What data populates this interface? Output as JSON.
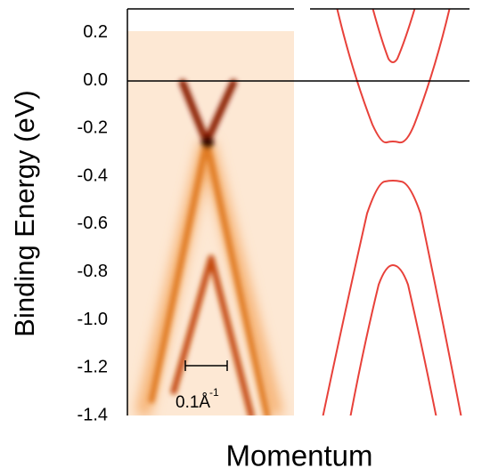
{
  "chart_data": {
    "type": "arpes",
    "ylabel": "Binding Energy (eV)",
    "xlabel": "Momentum",
    "ylim": [
      -1.4,
      0.3
    ],
    "yticks": [
      0.2,
      {
        "value": 0,
        "label": "0.0"
      },
      -0.2,
      -0.4,
      -0.6,
      -0.8,
      {
        "value": -1,
        "label": "-1.0"
      },
      -1.2,
      -1.4
    ],
    "scale_bar": {
      "label": "0.1Å",
      "exponent": "-1"
    },
    "band_color": "#e8413a"
  }
}
